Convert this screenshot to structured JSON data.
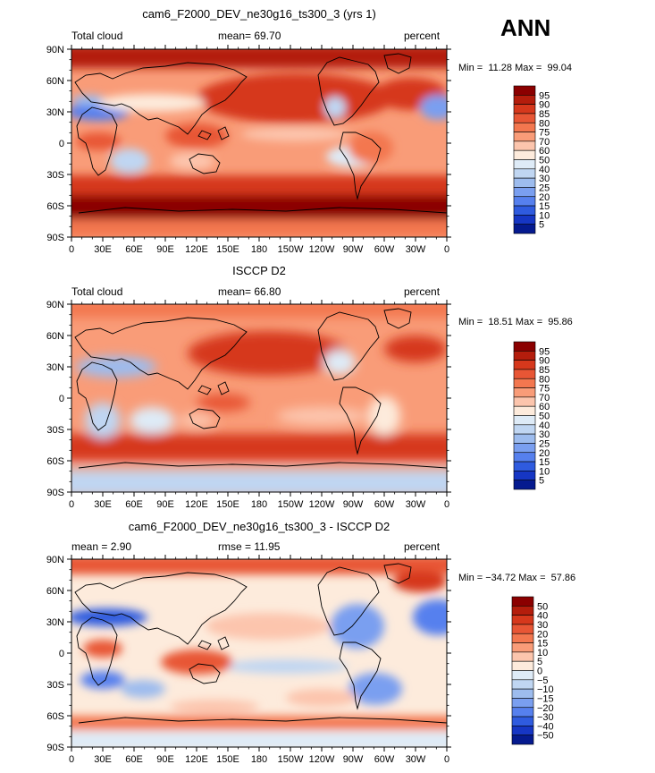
{
  "season": "ANN",
  "panels": [
    {
      "title": "cam6_F2000_DEV_ne30g16_ts300_3 (yrs 1)",
      "left_label": "Total cloud",
      "stats_label": "mean=  69.70",
      "units": "percent",
      "minmax": "Min =  11.28 Max =  99.04"
    },
    {
      "title": "ISCCP D2",
      "left_label": "Total cloud",
      "stats_label": "mean=  66.80",
      "units": "percent",
      "minmax": "Min =  18.51 Max =  95.86"
    },
    {
      "title": "cam6_F2000_DEV_ne30g16_ts300_3 - ISCCP D2",
      "left_label": "mean =   2.90",
      "stats_label": "rmse =  11.95",
      "units": "percent",
      "minmax": "Min = −34.72 Max =  57.86"
    }
  ],
  "lat_labels": [
    "90N",
    "60N",
    "30N",
    "0",
    "30S",
    "60S",
    "90S"
  ],
  "lon_labels": [
    "0",
    "30E",
    "60E",
    "90E",
    "120E",
    "150E",
    "180",
    "150W",
    "120W",
    "90W",
    "60W",
    "30W",
    "0"
  ],
  "colorbar_abs": {
    "labels": [
      "95",
      "90",
      "85",
      "80",
      "75",
      "70",
      "60",
      "50",
      "40",
      "30",
      "25",
      "20",
      "15",
      "10",
      "5"
    ],
    "colors": [
      "#8b0000",
      "#b41d0c",
      "#d6381c",
      "#e85635",
      "#f3774f",
      "#f99c78",
      "#fcc5ad",
      "#fdebdc",
      "#deebf7",
      "#c0d6f2",
      "#9dbcee",
      "#7a9ff0",
      "#5680ee",
      "#2f5bdf",
      "#1636c4",
      "#051a8f"
    ]
  },
  "colorbar_diff": {
    "labels": [
      "50",
      "40",
      "30",
      "20",
      "15",
      "10",
      "5",
      "0",
      "−5",
      "−10",
      "−15",
      "−20",
      "−30",
      "−40",
      "−50"
    ],
    "colors": [
      "#8b0000",
      "#b41d0c",
      "#d6381c",
      "#e85635",
      "#f3774f",
      "#f99c78",
      "#fcc5ad",
      "#fdebdc",
      "#deebf7",
      "#c0d6f2",
      "#9dbcee",
      "#7a9ff0",
      "#5680ee",
      "#2f5bdf",
      "#1636c4",
      "#051a8f"
    ]
  }
}
